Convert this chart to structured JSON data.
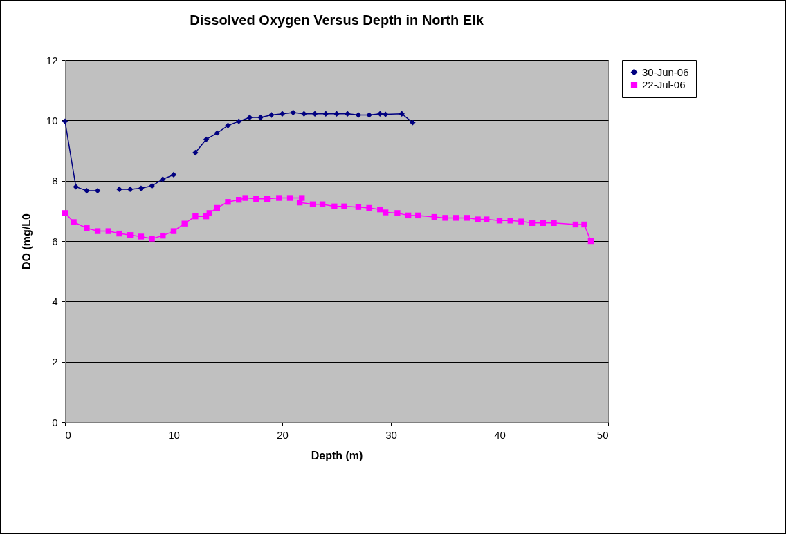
{
  "chart_data": {
    "type": "line",
    "title": "Dissolved Oxygen Versus Depth in North Elk",
    "xlabel": "Depth (m)",
    "ylabel": "DO (mg/L0",
    "xlim": [
      0,
      50
    ],
    "xticks": [
      0,
      10,
      20,
      30,
      40,
      50
    ],
    "ylim": [
      0,
      12
    ],
    "yticks": [
      0,
      2,
      4,
      6,
      8,
      10,
      12
    ],
    "grid": "y",
    "legend": "right",
    "series": [
      {
        "name": "30-Jun-06",
        "color": "#000080",
        "marker": "diamond",
        "x": [
          0,
          1,
          2,
          3,
          4,
          5,
          6,
          7,
          8,
          9,
          10,
          11,
          12,
          13,
          14,
          15,
          16,
          17,
          18,
          19,
          20,
          21,
          22,
          23,
          24,
          25,
          26,
          27,
          28,
          29,
          29.5,
          31,
          32
        ],
        "values": [
          9.97,
          7.8,
          7.67,
          7.67,
          null,
          7.72,
          7.72,
          7.75,
          7.83,
          8.05,
          8.2,
          null,
          8.93,
          9.37,
          9.58,
          9.83,
          9.97,
          10.1,
          10.1,
          10.18,
          10.22,
          10.26,
          10.22,
          10.22,
          10.22,
          10.22,
          10.22,
          10.18,
          10.18,
          10.22,
          10.2,
          10.22,
          9.93
        ]
      },
      {
        "name": "22-Jul-06",
        "color": "#ff00ff",
        "marker": "square",
        "x": [
          0,
          0.8,
          2,
          3,
          4,
          5,
          6,
          7,
          8,
          9,
          10,
          11,
          12,
          13,
          13.3,
          14,
          15,
          16,
          16.6,
          17.6,
          18.6,
          19.7,
          20.7,
          21.8,
          21.6,
          22.8,
          23.7,
          24.8,
          25.7,
          27,
          28,
          29,
          29.5,
          30.6,
          31.6,
          32.5,
          34,
          35,
          36,
          37,
          38,
          38.8,
          40,
          41,
          42,
          43,
          44,
          45,
          47,
          47.8,
          48.4
        ],
        "values": [
          6.93,
          6.63,
          6.43,
          6.33,
          6.33,
          6.25,
          6.2,
          6.15,
          6.08,
          6.18,
          6.33,
          6.58,
          6.82,
          6.82,
          6.93,
          7.1,
          7.3,
          7.37,
          7.43,
          7.4,
          7.4,
          7.43,
          7.43,
          7.43,
          7.28,
          7.22,
          7.22,
          7.15,
          7.15,
          7.13,
          7.1,
          7.05,
          6.95,
          6.93,
          6.85,
          6.85,
          6.8,
          6.77,
          6.77,
          6.77,
          6.72,
          6.72,
          6.68,
          6.68,
          6.65,
          6.6,
          6.6,
          6.6,
          6.55,
          6.55,
          6.0
        ]
      }
    ]
  }
}
